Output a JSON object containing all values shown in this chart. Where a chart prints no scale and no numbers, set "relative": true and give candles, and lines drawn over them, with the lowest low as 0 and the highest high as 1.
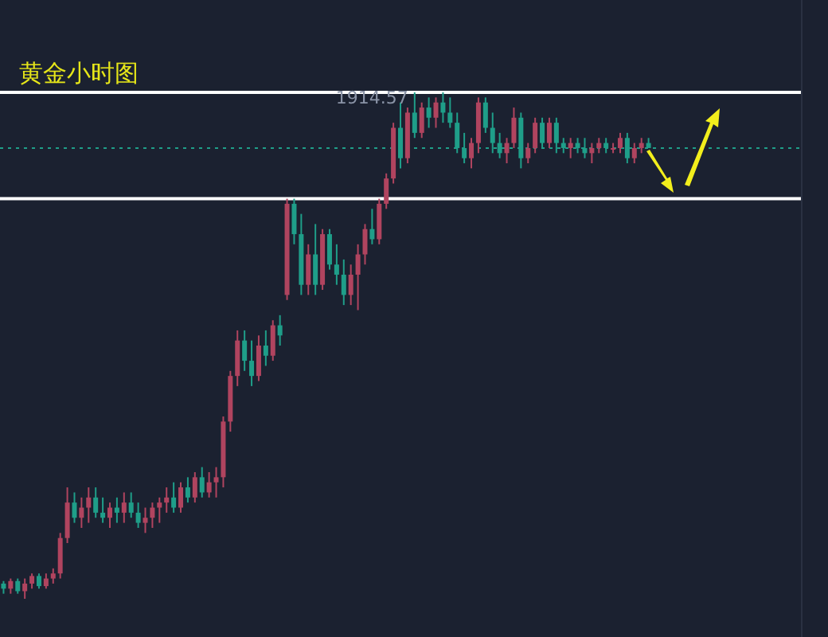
{
  "chart_data": {
    "type": "candlestick",
    "title": "黄金小时图",
    "relative": true,
    "categories": [
      null,
      null,
      null,
      null,
      null,
      null,
      null,
      null,
      null,
      null,
      null,
      null,
      null,
      null,
      null,
      null,
      null,
      null,
      null,
      null,
      null,
      null,
      null,
      null,
      null,
      null,
      null,
      null,
      null,
      null,
      null,
      null,
      null,
      null,
      null,
      null,
      null,
      null,
      null,
      null,
      null,
      null,
      null,
      null,
      null,
      null,
      null,
      null,
      null,
      null,
      null,
      null,
      null,
      null,
      null,
      null,
      null,
      null,
      null,
      null,
      null,
      null,
      null,
      null,
      null,
      null,
      null,
      null,
      null,
      null,
      null,
      null,
      null,
      null,
      null,
      null,
      null,
      null,
      null,
      null,
      null,
      null,
      null,
      null,
      null,
      null,
      null,
      null,
      null,
      null,
      null,
      null
    ],
    "ohlc": [
      [
        0.03,
        0.035,
        0.01,
        0.02
      ],
      [
        0.02,
        0.04,
        0.01,
        0.035
      ],
      [
        0.035,
        0.04,
        0.01,
        0.015
      ],
      [
        0.015,
        0.04,
        0.0,
        0.03
      ],
      [
        0.03,
        0.05,
        0.02,
        0.045
      ],
      [
        0.045,
        0.05,
        0.02,
        0.025
      ],
      [
        0.025,
        0.05,
        0.02,
        0.04
      ],
      [
        0.04,
        0.06,
        0.03,
        0.05
      ],
      [
        0.05,
        0.13,
        0.04,
        0.12
      ],
      [
        0.12,
        0.22,
        0.11,
        0.19
      ],
      [
        0.19,
        0.21,
        0.15,
        0.16
      ],
      [
        0.16,
        0.2,
        0.14,
        0.18
      ],
      [
        0.18,
        0.22,
        0.15,
        0.2
      ],
      [
        0.2,
        0.22,
        0.16,
        0.17
      ],
      [
        0.17,
        0.2,
        0.15,
        0.16
      ],
      [
        0.16,
        0.19,
        0.14,
        0.18
      ],
      [
        0.18,
        0.2,
        0.15,
        0.17
      ],
      [
        0.17,
        0.21,
        0.15,
        0.19
      ],
      [
        0.19,
        0.21,
        0.16,
        0.17
      ],
      [
        0.17,
        0.19,
        0.14,
        0.15
      ],
      [
        0.15,
        0.18,
        0.13,
        0.16
      ],
      [
        0.16,
        0.19,
        0.14,
        0.18
      ],
      [
        0.18,
        0.2,
        0.15,
        0.19
      ],
      [
        0.19,
        0.22,
        0.17,
        0.2
      ],
      [
        0.2,
        0.23,
        0.17,
        0.18
      ],
      [
        0.18,
        0.23,
        0.17,
        0.22
      ],
      [
        0.22,
        0.24,
        0.19,
        0.2
      ],
      [
        0.2,
        0.25,
        0.19,
        0.24
      ],
      [
        0.24,
        0.26,
        0.2,
        0.21
      ],
      [
        0.21,
        0.25,
        0.2,
        0.23
      ],
      [
        0.23,
        0.26,
        0.2,
        0.24
      ],
      [
        0.24,
        0.36,
        0.22,
        0.35
      ],
      [
        0.35,
        0.45,
        0.33,
        0.44
      ],
      [
        0.44,
        0.53,
        0.42,
        0.51
      ],
      [
        0.51,
        0.53,
        0.45,
        0.47
      ],
      [
        0.47,
        0.51,
        0.42,
        0.44
      ],
      [
        0.44,
        0.52,
        0.43,
        0.5
      ],
      [
        0.5,
        0.53,
        0.46,
        0.48
      ],
      [
        0.48,
        0.55,
        0.47,
        0.54
      ],
      [
        0.54,
        0.56,
        0.5,
        0.52
      ],
      [
        0.6,
        0.79,
        0.59,
        0.78
      ],
      [
        0.78,
        0.79,
        0.7,
        0.72
      ],
      [
        0.72,
        0.76,
        0.6,
        0.62
      ],
      [
        0.62,
        0.7,
        0.6,
        0.68
      ],
      [
        0.68,
        0.74,
        0.6,
        0.62
      ],
      [
        0.62,
        0.73,
        0.61,
        0.72
      ],
      [
        0.72,
        0.73,
        0.65,
        0.66
      ],
      [
        0.66,
        0.7,
        0.62,
        0.64
      ],
      [
        0.64,
        0.67,
        0.58,
        0.6
      ],
      [
        0.6,
        0.66,
        0.58,
        0.64
      ],
      [
        0.64,
        0.7,
        0.57,
        0.68
      ],
      [
        0.68,
        0.74,
        0.66,
        0.73
      ],
      [
        0.73,
        0.77,
        0.7,
        0.71
      ],
      [
        0.71,
        0.79,
        0.7,
        0.78
      ],
      [
        0.78,
        0.84,
        0.77,
        0.83
      ],
      [
        0.83,
        0.94,
        0.82,
        0.93
      ],
      [
        0.93,
        0.98,
        0.85,
        0.87
      ],
      [
        0.87,
        0.97,
        0.86,
        0.96
      ],
      [
        0.96,
        1.0,
        0.91,
        0.92
      ],
      [
        0.92,
        0.98,
        0.91,
        0.97
      ],
      [
        0.97,
        0.99,
        0.93,
        0.95
      ],
      [
        0.95,
        0.99,
        0.93,
        0.98
      ],
      [
        0.98,
        1.0,
        0.94,
        0.96
      ],
      [
        0.96,
        0.99,
        0.93,
        0.94
      ],
      [
        0.94,
        0.96,
        0.88,
        0.89
      ],
      [
        0.89,
        0.92,
        0.86,
        0.87
      ],
      [
        0.87,
        0.91,
        0.85,
        0.9
      ],
      [
        0.9,
        0.99,
        0.88,
        0.98
      ],
      [
        0.98,
        0.99,
        0.92,
        0.93
      ],
      [
        0.93,
        0.96,
        0.88,
        0.9
      ],
      [
        0.9,
        0.92,
        0.87,
        0.88
      ],
      [
        0.88,
        0.91,
        0.86,
        0.9
      ],
      [
        0.9,
        0.97,
        0.89,
        0.95
      ],
      [
        0.95,
        0.96,
        0.85,
        0.87
      ],
      [
        0.87,
        0.9,
        0.86,
        0.89
      ],
      [
        0.89,
        0.95,
        0.88,
        0.94
      ],
      [
        0.94,
        0.95,
        0.89,
        0.9
      ],
      [
        0.9,
        0.95,
        0.89,
        0.94
      ],
      [
        0.94,
        0.95,
        0.88,
        0.9
      ],
      [
        0.9,
        0.91,
        0.88,
        0.89
      ],
      [
        0.89,
        0.91,
        0.87,
        0.9
      ],
      [
        0.9,
        0.91,
        0.88,
        0.89
      ],
      [
        0.89,
        0.91,
        0.87,
        0.88
      ],
      [
        0.88,
        0.9,
        0.86,
        0.89
      ],
      [
        0.89,
        0.91,
        0.88,
        0.9
      ],
      [
        0.9,
        0.91,
        0.88,
        0.89
      ],
      [
        0.89,
        0.9,
        0.88,
        0.89
      ],
      [
        0.89,
        0.92,
        0.88,
        0.91
      ],
      [
        0.91,
        0.92,
        0.86,
        0.87
      ],
      [
        0.87,
        0.9,
        0.86,
        0.89
      ],
      [
        0.89,
        0.91,
        0.88,
        0.9
      ],
      [
        0.9,
        0.91,
        0.89,
        0.89
      ]
    ],
    "annotations": [
      {
        "text": "1914.57",
        "y": 1.0
      }
    ],
    "ref_lines": [
      {
        "axis": "y",
        "value": 1.0,
        "color": "#ffffff"
      },
      {
        "axis": "y",
        "value": 0.79,
        "color": "#ffffff"
      },
      {
        "axis": "y",
        "value": 0.89,
        "color": "#1f9e89",
        "line_style": "dotted"
      }
    ]
  }
}
